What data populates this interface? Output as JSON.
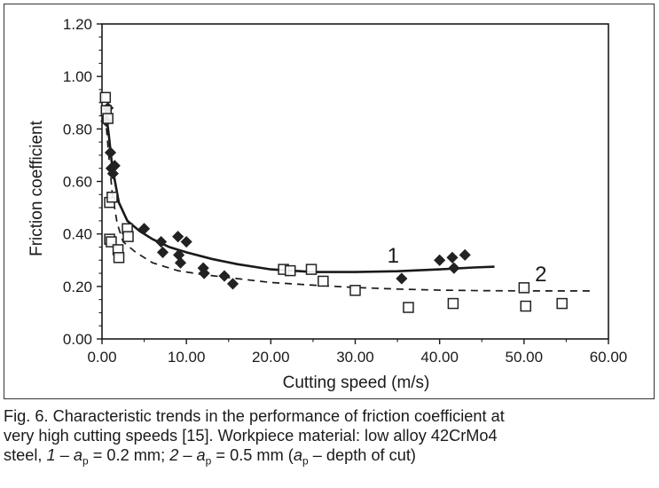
{
  "chart_data": {
    "type": "scatter",
    "xlabel": "Cutting speed  (m/s)",
    "ylabel": "Friction coefficient",
    "xlim": [
      0,
      60
    ],
    "ylim": [
      0,
      1.2
    ],
    "x_ticks": [
      "0.00",
      "10.00",
      "20.00",
      "30.00",
      "40.00",
      "50.00",
      "60.00"
    ],
    "y_ticks": [
      "0.00",
      "0.20",
      "0.40",
      "0.60",
      "0.80",
      "1.00",
      "1.20"
    ],
    "grid": false,
    "series": [
      {
        "name": "1",
        "marker": "filled-diamond",
        "points": [
          [
            0.5,
            0.83
          ],
          [
            0.7,
            0.88
          ],
          [
            1.0,
            0.71
          ],
          [
            1.1,
            0.65
          ],
          [
            1.3,
            0.63
          ],
          [
            1.5,
            0.66
          ],
          [
            5.0,
            0.42
          ],
          [
            7.0,
            0.37
          ],
          [
            7.2,
            0.33
          ],
          [
            9.0,
            0.39
          ],
          [
            9.1,
            0.32
          ],
          [
            9.3,
            0.29
          ],
          [
            10.0,
            0.37
          ],
          [
            12.0,
            0.27
          ],
          [
            12.1,
            0.25
          ],
          [
            14.5,
            0.24
          ],
          [
            15.5,
            0.21
          ],
          [
            35.5,
            0.23
          ],
          [
            40.0,
            0.3
          ],
          [
            41.5,
            0.31
          ],
          [
            41.7,
            0.27
          ],
          [
            43.0,
            0.32
          ]
        ],
        "trend": [
          [
            0.4,
            0.88
          ],
          [
            0.8,
            0.78
          ],
          [
            1.2,
            0.66
          ],
          [
            2.0,
            0.52
          ],
          [
            3.0,
            0.45
          ],
          [
            4.5,
            0.41
          ],
          [
            6.0,
            0.38
          ],
          [
            8.0,
            0.35
          ],
          [
            10.0,
            0.33
          ],
          [
            13.0,
            0.305
          ],
          [
            16.0,
            0.285
          ],
          [
            20.0,
            0.265
          ],
          [
            25.0,
            0.255
          ],
          [
            30.0,
            0.255
          ],
          [
            35.0,
            0.258
          ],
          [
            40.0,
            0.265
          ],
          [
            44.0,
            0.272
          ],
          [
            46.5,
            0.275
          ]
        ],
        "trend_style": "solid"
      },
      {
        "name": "2",
        "marker": "open-square",
        "points": [
          [
            0.4,
            0.92
          ],
          [
            0.5,
            0.87
          ],
          [
            0.7,
            0.84
          ],
          [
            0.9,
            0.52
          ],
          [
            1.2,
            0.54
          ],
          [
            0.9,
            0.38
          ],
          [
            1.1,
            0.37
          ],
          [
            1.9,
            0.34
          ],
          [
            2.0,
            0.31
          ],
          [
            3.0,
            0.42
          ],
          [
            3.1,
            0.39
          ],
          [
            21.5,
            0.265
          ],
          [
            22.3,
            0.26
          ],
          [
            24.8,
            0.265
          ],
          [
            26.2,
            0.22
          ],
          [
            30.0,
            0.185
          ],
          [
            36.3,
            0.12
          ],
          [
            41.6,
            0.135
          ],
          [
            50.0,
            0.195
          ],
          [
            50.2,
            0.125
          ],
          [
            54.5,
            0.135
          ]
        ],
        "trend": [
          [
            0.4,
            0.85
          ],
          [
            0.8,
            0.7
          ],
          [
            1.2,
            0.56
          ],
          [
            1.8,
            0.44
          ],
          [
            2.5,
            0.37
          ],
          [
            4.0,
            0.33
          ],
          [
            6.0,
            0.29
          ],
          [
            9.0,
            0.26
          ],
          [
            12.0,
            0.245
          ],
          [
            16.0,
            0.23
          ],
          [
            20.0,
            0.215
          ],
          [
            25.0,
            0.205
          ],
          [
            30.0,
            0.196
          ],
          [
            35.0,
            0.19
          ],
          [
            40.0,
            0.186
          ],
          [
            45.0,
            0.184
          ],
          [
            50.0,
            0.183
          ],
          [
            55.0,
            0.183
          ],
          [
            58.0,
            0.183
          ]
        ],
        "trend_style": "dashed"
      }
    ],
    "annotations": [
      {
        "text": "1",
        "x": 34.5,
        "y": 0.29
      },
      {
        "text": "2",
        "x": 52.0,
        "y": 0.22
      }
    ]
  },
  "caption": {
    "line1": "Fig. 6. Characteristic trends in the performance of friction coefficient at",
    "line2": "very high cutting speeds [15]. Workpiece material: low alloy 42CrMo4",
    "line3_steel": "steel, ",
    "s1_num": "1",
    "s1_dash": " – ",
    "s1_a": "a",
    "s1_sub": "p",
    "s1_val": " = 0.2 mm; ",
    "s2_num": "2",
    "s2_dash": " – ",
    "s2_a": "a",
    "s2_sub": "p",
    "s2_val": " = 0.5 mm (",
    "paren_a": "a",
    "paren_sub": "p",
    "paren_rest": " – depth of cut)"
  }
}
